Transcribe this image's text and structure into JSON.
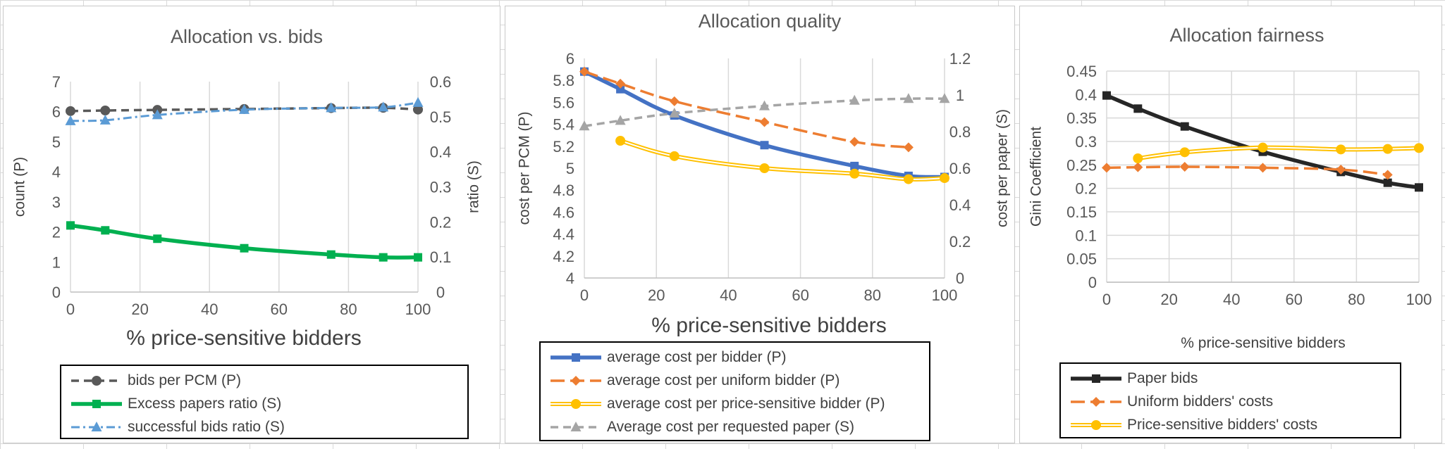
{
  "chart_data": [
    {
      "type": "line",
      "title": "Allocation vs. bids",
      "xlabel": "% price-sensitive bidders",
      "ylabel": "count (P)",
      "y2label": "ratio  (S)",
      "xlim": [
        0,
        100
      ],
      "ylim": [
        0,
        7
      ],
      "y2lim": [
        0,
        0.6
      ],
      "xticks": [
        "0",
        "20",
        "40",
        "60",
        "80",
        "100"
      ],
      "yticks": [
        "0",
        "1",
        "2",
        "3",
        "4",
        "5",
        "6",
        "7"
      ],
      "y2ticks": [
        "0",
        "0.1",
        "0.2",
        "0.3",
        "0.4",
        "0.5",
        "0.6"
      ],
      "grid": "vertical",
      "legend": "bottom",
      "series": [
        {
          "name": "bids per PCM (P)",
          "axis": "left",
          "color": "#595959",
          "style": "dash",
          "marker": "circle",
          "x": [
            0,
            10,
            25,
            50,
            75,
            90,
            100
          ],
          "y": [
            6.02,
            6.04,
            6.06,
            6.09,
            6.12,
            6.13,
            6.07
          ]
        },
        {
          "name": "Excess papers ratio (S)",
          "axis": "right",
          "color": "#00b050",
          "style": "solid-thick",
          "marker": "square",
          "x": [
            0,
            10,
            25,
            50,
            75,
            90,
            100
          ],
          "y": [
            0.19,
            0.176,
            0.152,
            0.125,
            0.107,
            0.099,
            0.099
          ]
        },
        {
          "name": "successful bids ratio (S)",
          "axis": "right",
          "color": "#5b9bd5",
          "style": "dashdot",
          "marker": "triangle",
          "x": [
            0,
            10,
            25,
            50,
            75,
            90,
            100
          ],
          "y": [
            0.488,
            0.49,
            0.505,
            0.52,
            0.525,
            0.527,
            0.54
          ]
        }
      ]
    },
    {
      "type": "line",
      "title": "Allocation quality",
      "xlabel": "% price-sensitive bidders",
      "ylabel": "cost per PCM (P)",
      "y2label": "cost per  paper  (S)",
      "xlim": [
        0,
        100
      ],
      "ylim": [
        4,
        6
      ],
      "y2lim": [
        0,
        1.2
      ],
      "xticks": [
        "0",
        "20",
        "40",
        "60",
        "80",
        "100"
      ],
      "yticks": [
        "4",
        "4.2",
        "4.4",
        "4.6",
        "4.8",
        "5",
        "5.2",
        "5.4",
        "5.6",
        "5.8",
        "6"
      ],
      "y2ticks": [
        "0",
        "0.2",
        "0.4",
        "0.6",
        "0.8",
        "1",
        "1.2"
      ],
      "grid": "vertical",
      "legend": "bottom",
      "series": [
        {
          "name": "average cost per bidder (P)",
          "axis": "left",
          "color": "#4472c4",
          "style": "solid-thick",
          "marker": "square",
          "x": [
            0,
            10,
            25,
            50,
            75,
            90,
            100
          ],
          "y": [
            5.88,
            5.72,
            5.48,
            5.21,
            5.02,
            4.93,
            4.92
          ]
        },
        {
          "name": "average cost per uniform bidder (P)",
          "axis": "left",
          "color": "#ed7d31",
          "style": "longdash",
          "marker": "diamond",
          "x": [
            0,
            10,
            25,
            50,
            75,
            90
          ],
          "y": [
            5.88,
            5.77,
            5.61,
            5.42,
            5.24,
            5.19
          ]
        },
        {
          "name": "average cost per price-sensitive bidder (P)",
          "axis": "left",
          "color": "#ffc000",
          "style": "double",
          "marker": "circle",
          "x": [
            10,
            25,
            50,
            75,
            90,
            100
          ],
          "y": [
            5.25,
            5.11,
            5.0,
            4.95,
            4.9,
            4.91
          ]
        },
        {
          "name": "Average cost per requested paper (S)",
          "axis": "right",
          "color": "#a5a5a5",
          "style": "dash",
          "marker": "triangle",
          "x": [
            0,
            10,
            25,
            50,
            75,
            90,
            100
          ],
          "y": [
            0.83,
            0.86,
            0.9,
            0.94,
            0.97,
            0.98,
            0.98
          ]
        }
      ]
    },
    {
      "type": "line",
      "title": "Allocation fairness",
      "xlabel": "% price-sensitive bidders",
      "ylabel": "Gini Coefficient",
      "xlim": [
        0,
        100
      ],
      "ylim": [
        0,
        0.45
      ],
      "xticks": [
        "0",
        "20",
        "40",
        "60",
        "80",
        "100"
      ],
      "yticks": [
        "0",
        "0.05",
        "0.1",
        "0.15",
        "0.2",
        "0.25",
        "0.3",
        "0.35",
        "0.4",
        "0.45"
      ],
      "grid": "both",
      "legend": "bottom",
      "series": [
        {
          "name": "Paper bids",
          "axis": "left",
          "color": "#262626",
          "style": "solid-thick",
          "marker": "square",
          "x": [
            0,
            10,
            25,
            50,
            75,
            90,
            100
          ],
          "y": [
            0.398,
            0.37,
            0.332,
            0.278,
            0.235,
            0.212,
            0.202
          ]
        },
        {
          "name": "Uniform bidders' costs",
          "axis": "left",
          "color": "#ed7d31",
          "style": "longdash",
          "marker": "diamond",
          "x": [
            0,
            10,
            25,
            50,
            75,
            90
          ],
          "y": [
            0.244,
            0.245,
            0.246,
            0.244,
            0.24,
            0.229
          ]
        },
        {
          "name": "Price-sensitive bidders' costs",
          "axis": "left",
          "color": "#ffc000",
          "style": "double",
          "marker": "circle",
          "x": [
            10,
            25,
            50,
            75,
            90,
            100
          ],
          "y": [
            0.264,
            0.277,
            0.287,
            0.283,
            0.284,
            0.286
          ]
        }
      ]
    }
  ]
}
